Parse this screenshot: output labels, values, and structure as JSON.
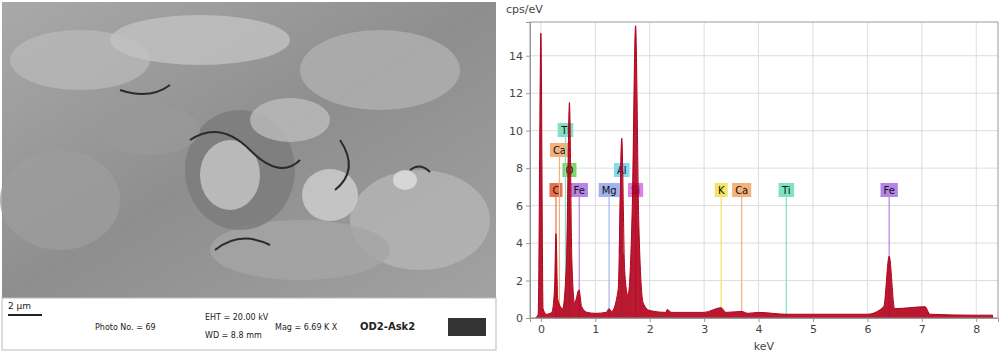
{
  "micrograph": {
    "scale_bar": "2 µm",
    "photo": "Photo No. = 69",
    "eht": "EHT = 20.00 kV",
    "wd": "WD = 8.8 mm",
    "mag": "Mag = 6.69 K X",
    "sample": "OD2-Ask2"
  },
  "chart_data": {
    "type": "area",
    "y_label": "cps/eV",
    "x_label": "keV",
    "color": "#b3001b",
    "x": [
      -0.1,
      -0.05,
      0,
      0.04,
      0.1,
      0.2,
      0.25,
      0.277,
      0.31,
      0.4,
      0.47,
      0.525,
      0.57,
      0.62,
      0.7,
      0.75,
      0.85,
      1.0,
      1.2,
      1.25,
      1.3,
      1.42,
      1.486,
      1.54,
      1.6,
      1.68,
      1.74,
      1.8,
      1.88,
      2.0,
      2.3,
      2.32,
      2.4,
      3.0,
      3.31,
      3.4,
      3.69,
      3.8,
      4.0,
      4.51,
      5.0,
      6.0,
      6.3,
      6.4,
      6.5,
      7.06,
      7.15,
      8.0,
      8.3
    ],
    "values": [
      0,
      0.2,
      15.2,
      0.5,
      0.2,
      0.3,
      1.5,
      4.5,
      1.0,
      0.5,
      3,
      11.5,
      3,
      0.8,
      1.5,
      0.6,
      0.3,
      0.25,
      0.3,
      0.5,
      0.35,
      1.5,
      9.6,
      2.5,
      1.2,
      6,
      15.6,
      5,
      0.8,
      0.4,
      0.3,
      0.45,
      0.3,
      0.3,
      0.55,
      0.3,
      0.35,
      0.25,
      0.3,
      0.2,
      0.2,
      0.2,
      0.6,
      3.3,
      0.5,
      0.6,
      0.2,
      0.15,
      0.15
    ],
    "xlim": [
      -0.2,
      8.4
    ],
    "xticks": [
      0,
      1,
      2,
      3,
      4,
      5,
      6,
      7,
      8
    ],
    "ylim": [
      0,
      15.8
    ],
    "yticks": [
      0,
      2,
      4,
      6,
      8,
      10,
      12,
      14
    ],
    "grid": true,
    "element_lines": [
      {
        "label": "C",
        "energy": 0.277,
        "color": "#e8704f"
      },
      {
        "label": "O",
        "energy": 0.525,
        "color": "#7fd46a"
      },
      {
        "label": "Ca",
        "energy": 0.341,
        "color": "#f3b27c"
      },
      {
        "label": "Ti",
        "energy": 0.452,
        "color": "#7fe2c2"
      },
      {
        "label": "Fe",
        "energy": 0.705,
        "color": "#b584e6"
      },
      {
        "label": "Mg",
        "energy": 1.254,
        "color": "#a3b3f2"
      },
      {
        "label": "Si",
        "energy": 1.74,
        "color": "#d884e6"
      },
      {
        "label": "Al",
        "energy": 1.486,
        "color": "#85d9f2"
      },
      {
        "label": "K",
        "energy": 3.313,
        "color": "#f2e466"
      },
      {
        "label": "Ca",
        "energy": 3.69,
        "color": "#f3b27c"
      },
      {
        "label": "Ti",
        "energy": 4.51,
        "color": "#7fe2c2"
      },
      {
        "label": "Fe",
        "energy": 6.4,
        "color": "#b584e6"
      }
    ]
  }
}
